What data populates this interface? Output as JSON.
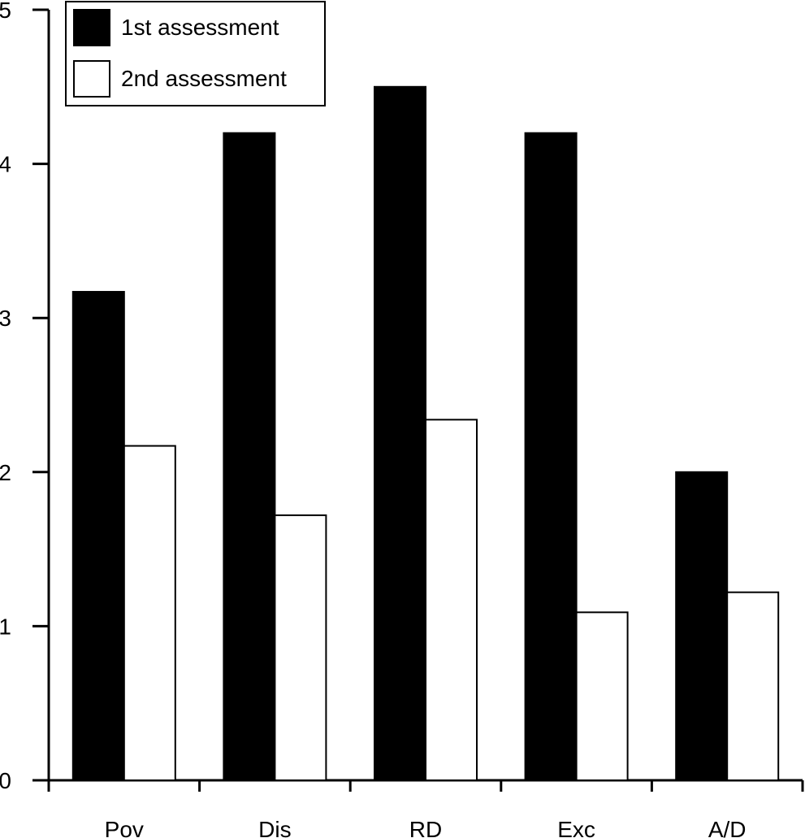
{
  "chart_data": {
    "type": "bar",
    "categories": [
      "Pov",
      "Dis",
      "RD",
      "Exc",
      "A/D"
    ],
    "series": [
      {
        "name": "1st assessment",
        "values": [
          3.17,
          4.2,
          4.5,
          4.2,
          2.0
        ],
        "color": "#000000"
      },
      {
        "name": "2nd assessment",
        "values": [
          2.17,
          1.72,
          2.34,
          1.09,
          1.22
        ],
        "color": "#ffffff"
      }
    ],
    "ylim": [
      0,
      5
    ],
    "yticks": [
      "0",
      "1",
      "2",
      "3",
      "4",
      "5"
    ],
    "title": "",
    "xlabel": "",
    "ylabel": "",
    "grid": false,
    "legend_position": "top-left"
  }
}
